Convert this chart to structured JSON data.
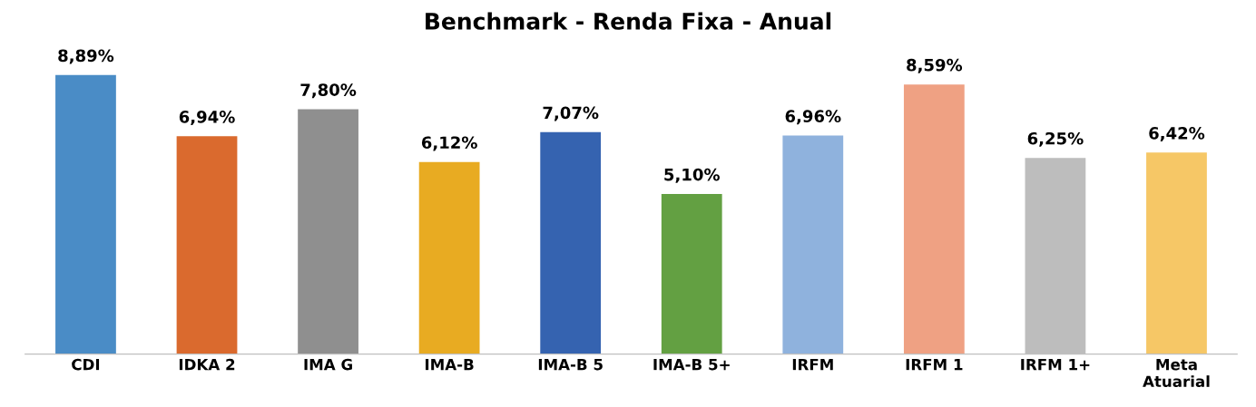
{
  "chart_data": {
    "type": "bar",
    "title": "Benchmark - Renda Fixa - Anual",
    "categories": [
      "CDI",
      "IDKA 2",
      "IMA G",
      "IMA-B",
      "IMA-B 5",
      "IMA-B 5+",
      "IRFM",
      "IRFM 1",
      "IRFM 1+",
      "Meta\nAtuarial"
    ],
    "values": [
      8.89,
      6.94,
      7.8,
      6.12,
      7.07,
      5.1,
      6.96,
      8.59,
      6.25,
      6.42
    ],
    "value_labels": [
      "8,89%",
      "6,94%",
      "7,80%",
      "6,12%",
      "7,07%",
      "5,10%",
      "6,96%",
      "8,59%",
      "6,25%",
      "6,42%"
    ],
    "colors": [
      "#4a8cc6",
      "#da6a2e",
      "#8f8f8f",
      "#e8ab22",
      "#3563b0",
      "#63a042",
      "#8fb2dd",
      "#efa183",
      "#bdbdbd",
      "#f6c766"
    ],
    "tick_labels": "x",
    "grid": false,
    "legend": false
  }
}
